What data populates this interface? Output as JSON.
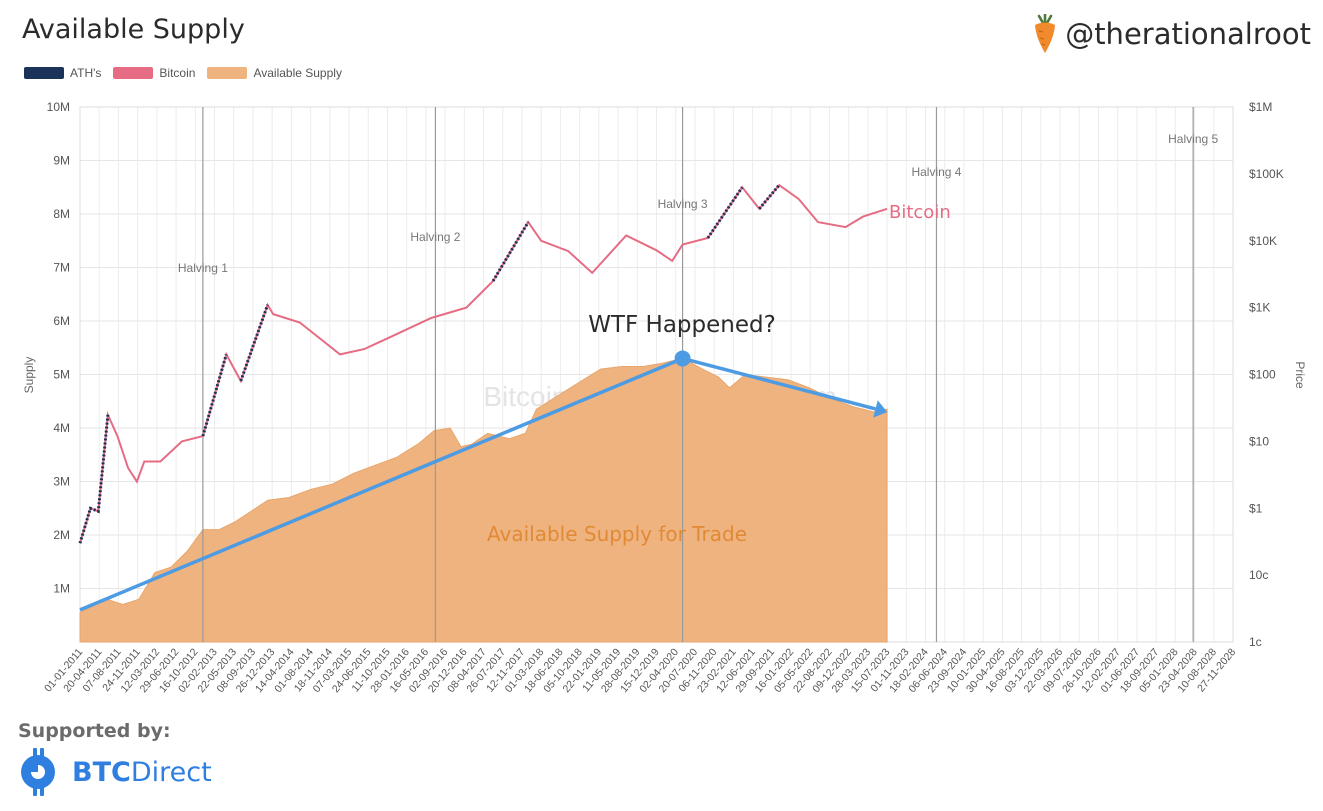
{
  "header": {
    "title": "Available Supply",
    "handle": "@therationalroot"
  },
  "footer": {
    "supported_by": "Supported by:",
    "brand_bold": "BTC",
    "brand_regular": "Direct"
  },
  "colors": {
    "ath": "#1b3358",
    "bitcoin": "#e66c84",
    "supply": "#efb37f",
    "supply_label": "#e08a36",
    "trend": "#4c9be3",
    "halving_line": "#9a9a9a"
  },
  "chart_data": {
    "type": "area",
    "title": "Available Supply",
    "watermark": "BitcoinStrategyPlatform.com",
    "legend": [
      {
        "name": "ATH's",
        "color": "#1b3358"
      },
      {
        "name": "Bitcoin",
        "color": "#e66c84"
      },
      {
        "name": "Available Supply",
        "color": "#efb37f"
      }
    ],
    "legend_placement": "top-left",
    "ylabel_left": "Supply",
    "ylabel_right": "Price",
    "y_left_ticks": [
      "1M",
      "2M",
      "3M",
      "4M",
      "5M",
      "6M",
      "7M",
      "8M",
      "9M",
      "10M"
    ],
    "y_left_range": [
      0,
      10000000
    ],
    "y_right_ticks": [
      "1c",
      "10c",
      "$1",
      "$10",
      "$100",
      "$1K",
      "$10K",
      "$100K",
      "$1M"
    ],
    "y_right_range": [
      0.01,
      1000000
    ],
    "y_right_scale": "log",
    "x_ticks": [
      "01-01-2011",
      "20-04-2011",
      "07-08-2011",
      "24-11-2011",
      "12-03-2012",
      "29-06-2012",
      "16-10-2012",
      "02-02-2013",
      "22-05-2013",
      "08-09-2013",
      "26-12-2013",
      "14-04-2014",
      "01-08-2014",
      "18-11-2014",
      "07-03-2015",
      "24-06-2015",
      "11-10-2015",
      "28-01-2016",
      "16-05-2016",
      "02-09-2016",
      "20-12-2016",
      "08-04-2017",
      "26-07-2017",
      "12-11-2017",
      "01-03-2018",
      "18-06-2018",
      "05-10-2018",
      "22-01-2019",
      "11-05-2019",
      "28-08-2019",
      "15-12-2019",
      "02-04-2020",
      "20-07-2020",
      "06-11-2020",
      "23-02-2021",
      "12-06-2021",
      "29-09-2021",
      "16-01-2022",
      "05-05-2022",
      "22-08-2022",
      "09-12-2022",
      "28-03-2023",
      "15-07-2023",
      "01-11-2023",
      "18-02-2024",
      "06-06-2024",
      "23-09-2024",
      "10-01-2025",
      "30-04-2025",
      "16-08-2025",
      "03-12-2025",
      "22-03-2026",
      "09-07-2026",
      "26-10-2026",
      "12-02-2027",
      "01-06-2027",
      "18-09-2027",
      "05-01-2028",
      "23-04-2028",
      "10-08-2028",
      "27-11-2028"
    ],
    "x_range": [
      "2011-01-01",
      "2028-11-27"
    ],
    "grid": true,
    "halvings": [
      {
        "label": "Halving 1",
        "date": "2012-11-28"
      },
      {
        "label": "Halving 2",
        "date": "2016-07-09"
      },
      {
        "label": "Halving 3",
        "date": "2020-05-11"
      },
      {
        "label": "Halving 4",
        "date": "2024-04-20"
      },
      {
        "label": "Halving 5",
        "date": "2028-04-15"
      }
    ],
    "series": [
      {
        "name": "Available Supply",
        "axis": "left",
        "points": [
          [
            "2011-01-01",
            550000
          ],
          [
            "2011-06-01",
            800000
          ],
          [
            "2011-09-01",
            700000
          ],
          [
            "2011-12-01",
            800000
          ],
          [
            "2012-03-01",
            1300000
          ],
          [
            "2012-06-01",
            1400000
          ],
          [
            "2012-09-01",
            1700000
          ],
          [
            "2012-11-28",
            2100000
          ],
          [
            "2013-03-01",
            2100000
          ],
          [
            "2013-06-01",
            2250000
          ],
          [
            "2013-09-01",
            2450000
          ],
          [
            "2013-12-01",
            2650000
          ],
          [
            "2014-04-01",
            2700000
          ],
          [
            "2014-08-01",
            2850000
          ],
          [
            "2014-12-01",
            2950000
          ],
          [
            "2015-04-01",
            3150000
          ],
          [
            "2015-08-01",
            3300000
          ],
          [
            "2015-12-01",
            3450000
          ],
          [
            "2016-04-01",
            3700000
          ],
          [
            "2016-07-01",
            3950000
          ],
          [
            "2016-10-01",
            4000000
          ],
          [
            "2016-12-01",
            3650000
          ],
          [
            "2017-02-01",
            3700000
          ],
          [
            "2017-05-01",
            3900000
          ],
          [
            "2017-09-01",
            3800000
          ],
          [
            "2017-12-01",
            3900000
          ],
          [
            "2018-02-01",
            4350000
          ],
          [
            "2018-06-01",
            4600000
          ],
          [
            "2018-10-01",
            4850000
          ],
          [
            "2019-02-01",
            5100000
          ],
          [
            "2019-06-01",
            5150000
          ],
          [
            "2019-10-01",
            5150000
          ],
          [
            "2020-01-01",
            5200000
          ],
          [
            "2020-05-11",
            5300000
          ],
          [
            "2020-09-01",
            5100000
          ],
          [
            "2020-12-01",
            4950000
          ],
          [
            "2021-02-01",
            4750000
          ],
          [
            "2021-05-01",
            5000000
          ],
          [
            "2021-09-01",
            4950000
          ],
          [
            "2022-01-01",
            4900000
          ],
          [
            "2022-05-01",
            4750000
          ],
          [
            "2022-09-01",
            4550000
          ],
          [
            "2023-01-01",
            4400000
          ],
          [
            "2023-05-01",
            4300000
          ],
          [
            "2023-07-15",
            4350000
          ]
        ]
      },
      {
        "name": "Bitcoin",
        "axis": "right",
        "points": [
          [
            "2011-01-01",
            0.3
          ],
          [
            "2011-03-01",
            1.0
          ],
          [
            "2011-04-15",
            0.9
          ],
          [
            "2011-06-08",
            25
          ],
          [
            "2011-08-01",
            12
          ],
          [
            "2011-10-01",
            4
          ],
          [
            "2011-11-20",
            2.5
          ],
          [
            "2012-01-01",
            5
          ],
          [
            "2012-04-01",
            5
          ],
          [
            "2012-08-01",
            10
          ],
          [
            "2012-11-28",
            12
          ],
          [
            "2013-04-10",
            200
          ],
          [
            "2013-07-01",
            80
          ],
          [
            "2013-11-30",
            1100
          ],
          [
            "2014-01-01",
            800
          ],
          [
            "2014-06-01",
            600
          ],
          [
            "2015-01-15",
            200
          ],
          [
            "2015-06-01",
            240
          ],
          [
            "2015-12-01",
            400
          ],
          [
            "2016-06-15",
            700
          ],
          [
            "2017-01-01",
            1000
          ],
          [
            "2017-06-01",
            2500
          ],
          [
            "2017-12-17",
            19000
          ],
          [
            "2018-03-01",
            10000
          ],
          [
            "2018-08-01",
            7000
          ],
          [
            "2018-12-15",
            3300
          ],
          [
            "2019-06-26",
            12000
          ],
          [
            "2019-12-15",
            7200
          ],
          [
            "2020-03-13",
            5000
          ],
          [
            "2020-05-11",
            8800
          ],
          [
            "2020-10-01",
            11000
          ],
          [
            "2021-04-14",
            63000
          ],
          [
            "2021-07-20",
            30000
          ],
          [
            "2021-11-10",
            68000
          ],
          [
            "2022-03-01",
            42000
          ],
          [
            "2022-06-18",
            19000
          ],
          [
            "2022-11-21",
            16000
          ],
          [
            "2023-03-01",
            23000
          ],
          [
            "2023-07-15",
            30000
          ]
        ]
      }
    ],
    "ath_segments": [
      [
        "2011-01-01",
        "2011-06-08"
      ],
      [
        "2012-12-01",
        "2013-04-10"
      ],
      [
        "2013-10-15",
        "2013-11-30"
      ],
      [
        "2017-02-20",
        "2017-12-17"
      ],
      [
        "2020-12-01",
        "2021-04-14"
      ],
      [
        "2021-10-15",
        "2021-11-10"
      ]
    ],
    "annotations": [
      {
        "text": "WTF Happened?",
        "kind": "title"
      },
      {
        "text": "Bitcoin",
        "kind": "series-label"
      },
      {
        "text": "Available Supply for Trade",
        "kind": "series-label"
      }
    ],
    "trend_arrow": {
      "start": [
        "2011-01-01",
        600000
      ],
      "peak": [
        "2020-05-11",
        5300000
      ],
      "end": [
        "2023-07-15",
        4300000
      ]
    }
  }
}
